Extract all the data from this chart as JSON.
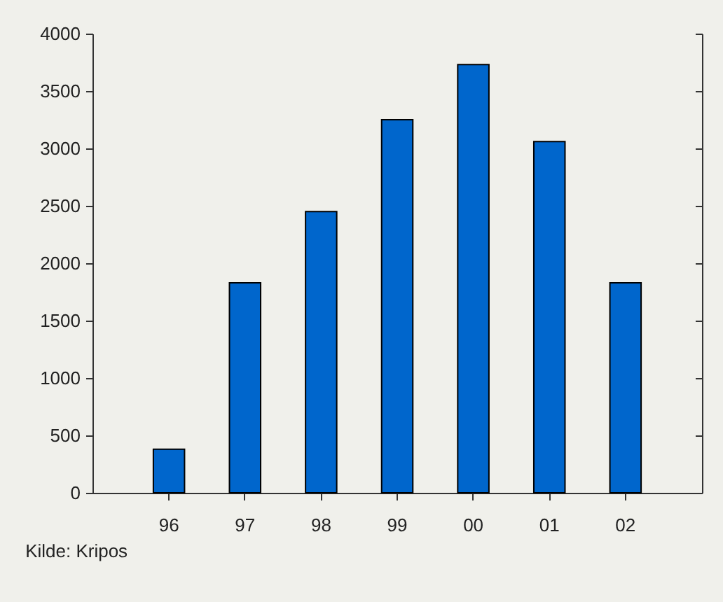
{
  "chart_data": {
    "type": "bar",
    "categories": [
      "96",
      "97",
      "98",
      "99",
      "00",
      "01",
      "02"
    ],
    "values": [
      380,
      1830,
      2450,
      3250,
      3730,
      3060,
      1830
    ],
    "color": "#0066cc",
    "ylim": [
      0,
      4000
    ],
    "yticks": [
      0,
      500,
      1000,
      1500,
      2000,
      2500,
      3000,
      3500,
      4000
    ],
    "annotations": [
      "Kilde: Kripos"
    ]
  }
}
